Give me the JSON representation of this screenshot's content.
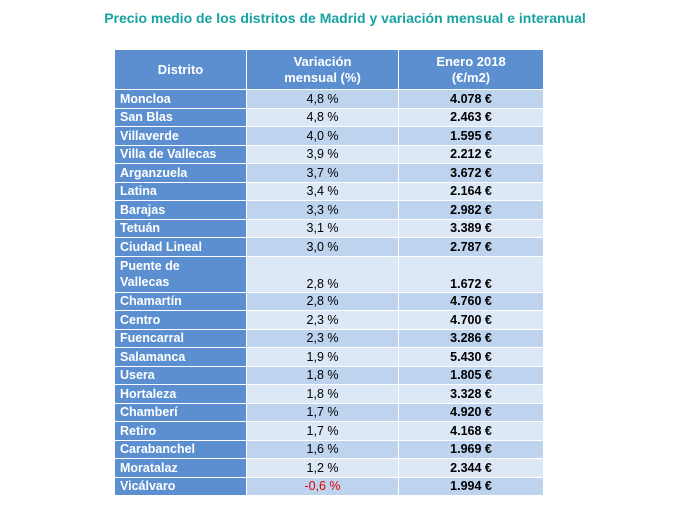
{
  "title": "Precio medio de los distritos  de Madrid  y variación  mensual  e interanual",
  "table": {
    "headers": [
      "Distrito",
      "Variación mensual (%)",
      "Enero 2018 (€/m2)"
    ],
    "header_lines": {
      "col1": "Distrito",
      "col2_line1": "Variación",
      "col2_line2": "mensual (%)",
      "col3_line1": "Enero 2018",
      "col3_line2": "(€/m2)"
    },
    "rows": [
      {
        "district": "Moncloa",
        "variation": "4,8 %",
        "price": "4.078 €"
      },
      {
        "district": "San Blas",
        "variation": "4,8 %",
        "price": "2.463 €"
      },
      {
        "district": "Villaverde",
        "variation": "4,0 %",
        "price": "1.595 €"
      },
      {
        "district": "Villa de Vallecas",
        "variation": "3,9 %",
        "price": "2.212 €"
      },
      {
        "district": "Arganzuela",
        "variation": "3,7 %",
        "price": "3.672 €"
      },
      {
        "district": "Latina",
        "variation": "3,4 %",
        "price": "2.164 €"
      },
      {
        "district": "Barajas",
        "variation": "3,3 %",
        "price": "2.982 €"
      },
      {
        "district": "Tetuán",
        "variation": "3,1 %",
        "price": "3.389 €"
      },
      {
        "district": "Ciudad Lineal",
        "variation": "3,0 %",
        "price": "2.787 €"
      },
      {
        "district": "Puente de Vallecas",
        "district_line1": "Puente de",
        "district_line2": "Vallecas",
        "variation": "2,8 %",
        "price": "1.672 €"
      },
      {
        "district": "Chamartín",
        "variation": "2,8 %",
        "price": "4.760 €"
      },
      {
        "district": "Centro",
        "variation": "2,3 %",
        "price": "4.700 €"
      },
      {
        "district": "Fuencarral",
        "variation": "2,3 %",
        "price": "3.286 €"
      },
      {
        "district": "Salamanca",
        "variation": "1,9 %",
        "price": "5.430 €"
      },
      {
        "district": "Usera",
        "variation": "1,8 %",
        "price": "1.805 €"
      },
      {
        "district": "Hortaleza",
        "variation": "1,8 %",
        "price": "3.328 €"
      },
      {
        "district": "Chamberí",
        "variation": "1,7 %",
        "price": "4.920 €"
      },
      {
        "district": "Retiro",
        "variation": "1,7 %",
        "price": "4.168 €"
      },
      {
        "district": "Carabanchel",
        "variation": "1,6 %",
        "price": "1.969 €"
      },
      {
        "district": "Moratalaz",
        "variation": "1,2 %",
        "price": "2.344 €"
      },
      {
        "district": "Vicálvaro",
        "variation": "-0,6 %",
        "price": "1.994 €",
        "negative": true
      }
    ]
  },
  "colors": {
    "title": "#17a2a2",
    "header_bg": "#5b8fd0",
    "row_dark": "#bdd3ee",
    "row_light": "#dde8f6",
    "negative": "#e00000"
  }
}
